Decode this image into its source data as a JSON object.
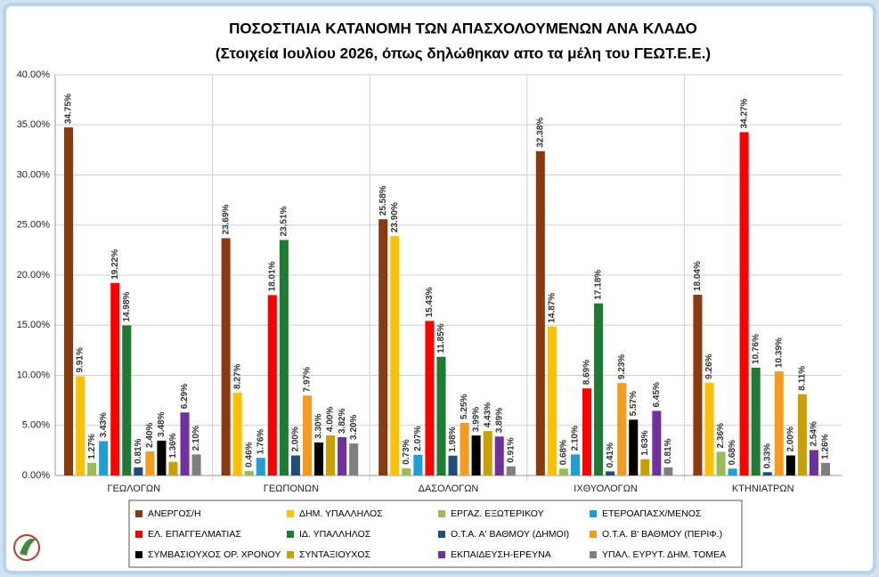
{
  "chart_data": {
    "type": "bar",
    "title": "ΠΟΣΟΣΤΙΑΙΑ ΚΑΤΑΝΟΜΗ ΤΩΝ ΑΠΑΣΧΟΛΟΥΜΕΝΩΝ ΑΝΑ ΚΛΑΔΟ",
    "subtitle": "(Στοιχεία Ιουλίου 2026, όπως δηλώθηκαν απο τα μέλη του ΓΕΩΤ.Ε.Ε.)",
    "categories": [
      "ΓΕΩΛΟΓΩΝ",
      "ΓΕΩΠΟΝΩΝ",
      "ΔΑΣΟΛΟΓΩΝ",
      "ΙΧΘΥΟΛΟΓΩΝ",
      "ΚΤΗΝΙΑΤΡΩΝ"
    ],
    "ylim": [
      0,
      40
    ],
    "yticks": [
      {
        "value": 0,
        "label": "0.00%"
      },
      {
        "value": 5,
        "label": "5.00%"
      },
      {
        "value": 10,
        "label": "10.00%"
      },
      {
        "value": 15,
        "label": "15.00%"
      },
      {
        "value": 20,
        "label": "20.00%"
      },
      {
        "value": 25,
        "label": "25.00%"
      },
      {
        "value": 30,
        "label": "30.00%"
      },
      {
        "value": 35,
        "label": "35.00%"
      },
      {
        "value": 40,
        "label": "40.00%"
      }
    ],
    "grid": true,
    "series": [
      {
        "name": "ΑΝΕΡΓΟΣ/Η",
        "color": "#8b3a0f",
        "values": [
          34.75,
          23.69,
          25.58,
          32.38,
          18.04
        ],
        "value_labels": [
          "34.75%",
          "23.69%",
          "25.58%",
          "32.38%",
          "18.04%"
        ]
      },
      {
        "name": "ΔΗΜ. ΥΠΑΛΛΗΛΟΣ",
        "color": "#ffc000",
        "values": [
          9.91,
          8.27,
          23.9,
          14.87,
          9.26
        ],
        "value_labels": [
          "9.91%",
          "8.27%",
          "23.90%",
          "14.87%",
          "9.26%"
        ]
      },
      {
        "name": "ΕΡΓΑΖ. ΕΞΩΤΕΡΙΚΟΥ",
        "color": "#9bbb59",
        "values": [
          1.27,
          0.46,
          0.73,
          0.68,
          2.36
        ],
        "value_labels": [
          "1.27%",
          "0.46%",
          "0.73%",
          "0.68%",
          "2.36%"
        ]
      },
      {
        "name": "ΕΤΕΡΟΑΠΑΣΧ/ΜΕΝΟΣ",
        "color": "#1f9ed8",
        "values": [
          3.43,
          1.76,
          2.07,
          2.1,
          0.68
        ],
        "value_labels": [
          "3.43%",
          "1.76%",
          "2.07%",
          "2.10%",
          "0.68%"
        ]
      },
      {
        "name": "ΕΛ. ΕΠΑΓΓΕΛΜΑΤΙΑΣ",
        "color": "#ff0000",
        "values": [
          19.22,
          18.01,
          15.43,
          8.69,
          34.27
        ],
        "value_labels": [
          "19.22%",
          "18.01%",
          "15.43%",
          "8.69%",
          "34.27%"
        ]
      },
      {
        "name": "ΙΔ. ΥΠΑΛΛΗΛΟΣ",
        "color": "#1e7b34",
        "values": [
          14.98,
          23.51,
          11.85,
          17.18,
          10.76
        ],
        "value_labels": [
          "14.98%",
          "23.51%",
          "11.85%",
          "17.18%",
          "10.76%"
        ]
      },
      {
        "name": "Ο.Τ.Α. Α' ΒΑΘΜΟΥ (ΔΗΜΟΙ)",
        "color": "#1f4e79",
        "values": [
          0.81,
          2.0,
          1.98,
          0.41,
          0.33
        ],
        "value_labels": [
          "0.81%",
          "2.00%",
          "1.98%",
          "0.41%",
          "0.33%"
        ]
      },
      {
        "name": "Ο.Τ.Α. Β' ΒΑΘΜΟΥ (ΠΕΡΙΦ.)",
        "color": "#f79a1e",
        "values": [
          2.4,
          7.97,
          5.25,
          9.23,
          10.39
        ],
        "value_labels": [
          "2.40%",
          "7.97%",
          "5.25%",
          "9.23%",
          "10.39%"
        ]
      },
      {
        "name": "ΣΥΜΒΑΣΙΟΥΧΟΣ ΟΡ. ΧΡΟΝΟΥ",
        "color": "#000000",
        "values": [
          3.48,
          3.3,
          3.99,
          5.57,
          2.0
        ],
        "value_labels": [
          "3.48%",
          "3.30%",
          "3.99%",
          "5.57%",
          "2.00%"
        ]
      },
      {
        "name": "ΣΥΝΤΑΞΙΟΥΧΟΣ",
        "color": "#c9a000",
        "values": [
          1.36,
          4.0,
          4.43,
          1.63,
          8.11
        ],
        "value_labels": [
          "1.36%",
          "4.00%",
          "4.43%",
          "1.63%",
          "8.11%"
        ]
      },
      {
        "name": "ΕΚΠΑΙΔΕΥΣΗ-ΕΡΕΥΝΑ",
        "color": "#7030a0",
        "values": [
          6.29,
          3.82,
          3.89,
          6.45,
          2.54
        ],
        "value_labels": [
          "6.29%",
          "3.82%",
          "3.89%",
          "6.45%",
          "2.54%"
        ]
      },
      {
        "name": "ΥΠΑΛ. ΕΥΡΥΤ. ΔΗΜ. ΤΟΜΕΑ",
        "color": "#7f7f7f",
        "values": [
          2.1,
          3.2,
          0.91,
          0.81,
          1.26
        ],
        "value_labels": [
          "2.10%",
          "3.20%",
          "0.91%",
          "0.81%",
          "1.26%"
        ]
      }
    ]
  }
}
